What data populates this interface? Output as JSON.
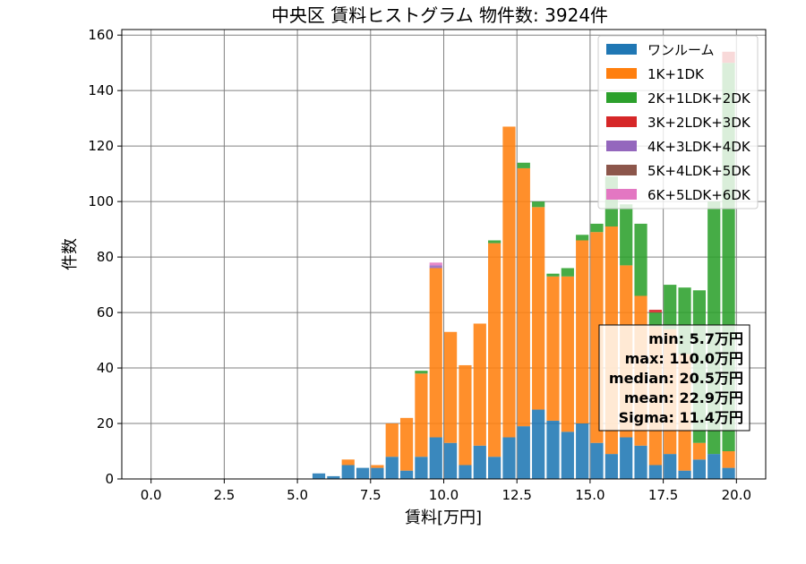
{
  "chart_data": {
    "type": "bar",
    "stacked": true,
    "title": "中央区 賃料ヒストグラム 物件数: 3924件",
    "xlabel": "賃料[万円]",
    "ylabel": "件数",
    "xlim": [
      -1,
      21
    ],
    "ylim": [
      0,
      162
    ],
    "bin_width": 0.5,
    "xticks": [
      "0.0",
      "2.5",
      "5.0",
      "7.5",
      "10.0",
      "12.5",
      "15.0",
      "17.5",
      "20.0"
    ],
    "yticks": [
      "0",
      "20",
      "40",
      "60",
      "80",
      "100",
      "120",
      "140",
      "160"
    ],
    "grid": true,
    "legend_position": "top-right",
    "x": [
      5.5,
      6.0,
      6.5,
      7.0,
      7.5,
      8.0,
      8.5,
      9.0,
      9.5,
      10.0,
      10.5,
      11.0,
      11.5,
      12.0,
      12.5,
      13.0,
      13.5,
      14.0,
      14.5,
      15.0,
      15.5,
      16.0,
      16.5,
      17.0,
      17.5,
      18.0,
      18.5,
      19.0,
      19.5
    ],
    "series": [
      {
        "name": "ワンルーム",
        "color": "#1f77b4",
        "values": [
          2,
          1,
          5,
          4,
          4,
          8,
          3,
          8,
          15,
          13,
          5,
          12,
          8,
          15,
          19,
          25,
          21,
          17,
          20,
          13,
          9,
          15,
          12,
          5,
          9,
          3,
          7,
          9,
          4
        ]
      },
      {
        "name": "1K+1DK",
        "color": "#ff7f0e",
        "values": [
          0,
          0,
          2,
          0,
          1,
          12,
          19,
          30,
          61,
          40,
          36,
          44,
          77,
          112,
          93,
          73,
          52,
          56,
          66,
          76,
          82,
          62,
          54,
          50,
          45,
          42,
          6,
          0,
          6
        ]
      },
      {
        "name": "2K+1LDK+2DK",
        "color": "#2ca02c",
        "values": [
          0,
          0,
          0,
          0,
          0,
          0,
          0,
          1,
          0,
          0,
          0,
          0,
          1,
          0,
          2,
          2,
          1,
          3,
          2,
          3,
          18,
          22,
          26,
          5,
          16,
          24,
          55,
          91,
          140
        ]
      },
      {
        "name": "3K+2LDK+3DK",
        "color": "#d62728",
        "values": [
          0,
          0,
          0,
          0,
          0,
          0,
          0,
          0,
          0,
          0,
          0,
          0,
          0,
          0,
          0,
          0,
          0,
          0,
          0,
          0,
          0,
          0,
          0,
          1,
          0,
          0,
          0,
          0,
          4
        ]
      },
      {
        "name": "4K+3LDK+4DK",
        "color": "#9467bd",
        "values": [
          0,
          0,
          0,
          0,
          0,
          0,
          0,
          0,
          1,
          0,
          0,
          0,
          0,
          0,
          0,
          0,
          0,
          0,
          0,
          0,
          0,
          0,
          0,
          0,
          0,
          0,
          0,
          0,
          0
        ]
      },
      {
        "name": "5K+4LDK+5DK",
        "color": "#8c564b",
        "values": [
          0,
          0,
          0,
          0,
          0,
          0,
          0,
          0,
          0,
          0,
          0,
          0,
          0,
          0,
          0,
          0,
          0,
          0,
          0,
          0,
          0,
          0,
          0,
          0,
          0,
          0,
          0,
          0,
          0
        ]
      },
      {
        "name": "6K+5LDK+6DK",
        "color": "#e377c2",
        "values": [
          0,
          0,
          0,
          0,
          0,
          0,
          0,
          0,
          1,
          0,
          0,
          0,
          0,
          0,
          0,
          0,
          0,
          0,
          0,
          0,
          0,
          0,
          0,
          0,
          0,
          0,
          0,
          0,
          0
        ]
      }
    ],
    "stats": [
      "min: 5.7万円",
      "max: 110.0万円",
      "median: 20.5万円",
      "mean: 22.9万円",
      "Sigma: 11.4万円"
    ]
  }
}
